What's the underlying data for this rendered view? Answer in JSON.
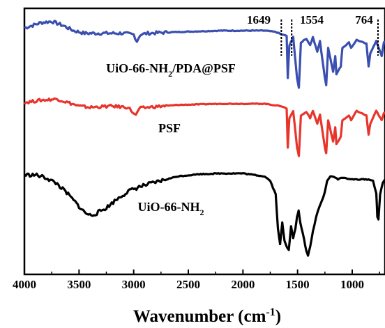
{
  "chart_data": {
    "type": "line",
    "xlabel": "Wavenumber (cm",
    "xlabel_sup": "-1",
    "xlabel_close": ")",
    "xlim": [
      4000,
      700
    ],
    "x_reversed": true,
    "y_axis": "offset, unlabeled",
    "grid": false,
    "legend": "none (series labeled inline)",
    "x_ticks": [
      "4000",
      "3500",
      "3000",
      "2500",
      "2000",
      "1500",
      "1000"
    ],
    "x_tick_values": [
      4000,
      3500,
      3000,
      2500,
      2000,
      1500,
      1000
    ],
    "series": [
      {
        "name": "UiO-66-NH",
        "name_sub": "2",
        "name_suffix": "/PDA@PSF",
        "color": "#3a4fb0",
        "offset": 2.0,
        "points": [
          [
            4000,
            0.93
          ],
          [
            3850,
            0.97
          ],
          [
            3750,
            0.98
          ],
          [
            3650,
            0.95
          ],
          [
            3550,
            0.91
          ],
          [
            3450,
            0.89
          ],
          [
            3300,
            0.89
          ],
          [
            3100,
            0.89
          ],
          [
            3000,
            0.88
          ],
          [
            2970,
            0.83
          ],
          [
            2940,
            0.88
          ],
          [
            2870,
            0.89
          ],
          [
            2600,
            0.9
          ],
          [
            2200,
            0.91
          ],
          [
            1800,
            0.91
          ],
          [
            1700,
            0.9
          ],
          [
            1640,
            0.88
          ],
          [
            1600,
            0.87
          ],
          [
            1590,
            0.55
          ],
          [
            1575,
            0.8
          ],
          [
            1540,
            0.86
          ],
          [
            1505,
            0.55
          ],
          [
            1488,
            0.48
          ],
          [
            1470,
            0.82
          ],
          [
            1420,
            0.85
          ],
          [
            1385,
            0.8
          ],
          [
            1360,
            0.86
          ],
          [
            1320,
            0.75
          ],
          [
            1295,
            0.83
          ],
          [
            1250,
            0.55
          ],
          [
            1238,
            0.5
          ],
          [
            1220,
            0.78
          ],
          [
            1175,
            0.6
          ],
          [
            1155,
            0.72
          ],
          [
            1145,
            0.58
          ],
          [
            1105,
            0.64
          ],
          [
            1090,
            0.78
          ],
          [
            1030,
            0.82
          ],
          [
            1010,
            0.78
          ],
          [
            960,
            0.84
          ],
          [
            870,
            0.81
          ],
          [
            850,
            0.64
          ],
          [
            835,
            0.74
          ],
          [
            780,
            0.83
          ],
          [
            730,
            0.72
          ],
          [
            710,
            0.82
          ],
          [
            700,
            0.83
          ]
        ]
      },
      {
        "name": "PSF",
        "color": "#e8352c",
        "offset": 1.0,
        "points": [
          [
            4000,
            0.93
          ],
          [
            3850,
            0.95
          ],
          [
            3700,
            0.96
          ],
          [
            3600,
            0.93
          ],
          [
            3500,
            0.9
          ],
          [
            3400,
            0.89
          ],
          [
            3200,
            0.9
          ],
          [
            3050,
            0.89
          ],
          [
            2980,
            0.82
          ],
          [
            2950,
            0.88
          ],
          [
            2870,
            0.89
          ],
          [
            2600,
            0.91
          ],
          [
            2200,
            0.92
          ],
          [
            1800,
            0.92
          ],
          [
            1650,
            0.9
          ],
          [
            1600,
            0.88
          ],
          [
            1590,
            0.55
          ],
          [
            1575,
            0.8
          ],
          [
            1540,
            0.86
          ],
          [
            1505,
            0.55
          ],
          [
            1488,
            0.48
          ],
          [
            1470,
            0.82
          ],
          [
            1420,
            0.85
          ],
          [
            1385,
            0.8
          ],
          [
            1360,
            0.86
          ],
          [
            1320,
            0.75
          ],
          [
            1295,
            0.83
          ],
          [
            1250,
            0.55
          ],
          [
            1238,
            0.5
          ],
          [
            1220,
            0.78
          ],
          [
            1175,
            0.6
          ],
          [
            1155,
            0.72
          ],
          [
            1145,
            0.58
          ],
          [
            1105,
            0.64
          ],
          [
            1090,
            0.78
          ],
          [
            1030,
            0.82
          ],
          [
            1010,
            0.78
          ],
          [
            960,
            0.86
          ],
          [
            870,
            0.82
          ],
          [
            850,
            0.66
          ],
          [
            835,
            0.75
          ],
          [
            780,
            0.86
          ],
          [
            730,
            0.78
          ],
          [
            710,
            0.84
          ],
          [
            700,
            0.85
          ]
        ]
      },
      {
        "name": "UiO-66-NH",
        "name_sub": "2",
        "color": "#000000",
        "offset": 0.0,
        "points": [
          [
            4000,
            0.98
          ],
          [
            3900,
            0.98
          ],
          [
            3800,
            0.96
          ],
          [
            3700,
            0.92
          ],
          [
            3600,
            0.85
          ],
          [
            3500,
            0.77
          ],
          [
            3450,
            0.73
          ],
          [
            3400,
            0.71
          ],
          [
            3350,
            0.72
          ],
          [
            3250,
            0.76
          ],
          [
            3150,
            0.82
          ],
          [
            3050,
            0.87
          ],
          [
            2950,
            0.9
          ],
          [
            2800,
            0.93
          ],
          [
            2600,
            0.97
          ],
          [
            2400,
            0.985
          ],
          [
            2200,
            0.99
          ],
          [
            2000,
            0.99
          ],
          [
            1800,
            0.97
          ],
          [
            1750,
            0.94
          ],
          [
            1700,
            0.85
          ],
          [
            1680,
            0.62
          ],
          [
            1660,
            0.52
          ],
          [
            1640,
            0.66
          ],
          [
            1620,
            0.54
          ],
          [
            1600,
            0.5
          ],
          [
            1580,
            0.48
          ],
          [
            1560,
            0.64
          ],
          [
            1540,
            0.56
          ],
          [
            1520,
            0.62
          ],
          [
            1505,
            0.7
          ],
          [
            1490,
            0.74
          ],
          [
            1475,
            0.66
          ],
          [
            1440,
            0.55
          ],
          [
            1420,
            0.47
          ],
          [
            1405,
            0.44
          ],
          [
            1385,
            0.5
          ],
          [
            1360,
            0.6
          ],
          [
            1330,
            0.7
          ],
          [
            1300,
            0.77
          ],
          [
            1270,
            0.82
          ],
          [
            1250,
            0.87
          ],
          [
            1230,
            0.94
          ],
          [
            1200,
            0.97
          ],
          [
            1170,
            0.97
          ],
          [
            1130,
            0.95
          ],
          [
            1100,
            0.96
          ],
          [
            1060,
            0.96
          ],
          [
            1030,
            0.95
          ],
          [
            1000,
            0.95
          ],
          [
            960,
            0.95
          ],
          [
            900,
            0.95
          ],
          [
            850,
            0.95
          ],
          [
            810,
            0.94
          ],
          [
            780,
            0.86
          ],
          [
            770,
            0.7
          ],
          [
            760,
            0.68
          ],
          [
            745,
            0.85
          ],
          [
            720,
            0.93
          ],
          [
            700,
            0.95
          ]
        ]
      }
    ],
    "annotations": [
      {
        "text": "1649",
        "x": 1649
      },
      {
        "text": "1554",
        "x": 1554
      },
      {
        "text": "764",
        "x": 764
      }
    ]
  }
}
